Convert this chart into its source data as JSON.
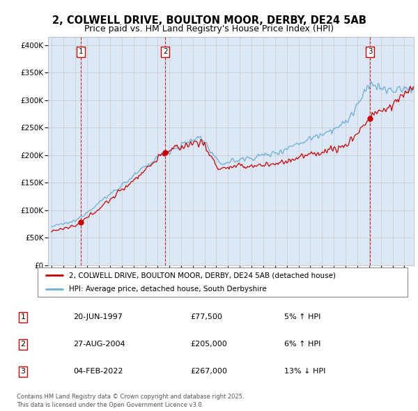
{
  "title_line1": "2, COLWELL DRIVE, BOULTON MOOR, DERBY, DE24 5AB",
  "title_line2": "Price paid vs. HM Land Registry's House Price Index (HPI)",
  "legend_line1": "2, COLWELL DRIVE, BOULTON MOOR, DERBY, DE24 5AB (detached house)",
  "legend_line2": "HPI: Average price, detached house, South Derbyshire",
  "transaction1_label": "1",
  "transaction1_date": "20-JUN-1997",
  "transaction1_price": "£77,500",
  "transaction1_hpi": "5% ↑ HPI",
  "transaction1_year": 1997.47,
  "transaction1_value": 77500,
  "transaction2_label": "2",
  "transaction2_date": "27-AUG-2004",
  "transaction2_price": "£205,000",
  "transaction2_hpi": "6% ↑ HPI",
  "transaction2_year": 2004.66,
  "transaction2_value": 205000,
  "transaction3_label": "3",
  "transaction3_date": "04-FEB-2022",
  "transaction3_price": "£267,000",
  "transaction3_hpi": "13% ↓ HPI",
  "transaction3_year": 2022.09,
  "transaction3_value": 267000,
  "footer_line1": "Contains HM Land Registry data © Crown copyright and database right 2025.",
  "footer_line2": "This data is licensed under the Open Government Licence v3.0.",
  "hpi_color": "#6aaed6",
  "price_color": "#cc0000",
  "background_color": "#dce8f5",
  "yticks": [
    0,
    50000,
    100000,
    150000,
    200000,
    250000,
    300000,
    350000,
    400000
  ],
  "ytick_labels": [
    "£0",
    "£50K",
    "£100K",
    "£150K",
    "£200K",
    "£250K",
    "£300K",
    "£350K",
    "£400K"
  ],
  "ylim_min": 0,
  "ylim_max": 415000,
  "xmin": 1994.7,
  "xmax": 2025.8
}
